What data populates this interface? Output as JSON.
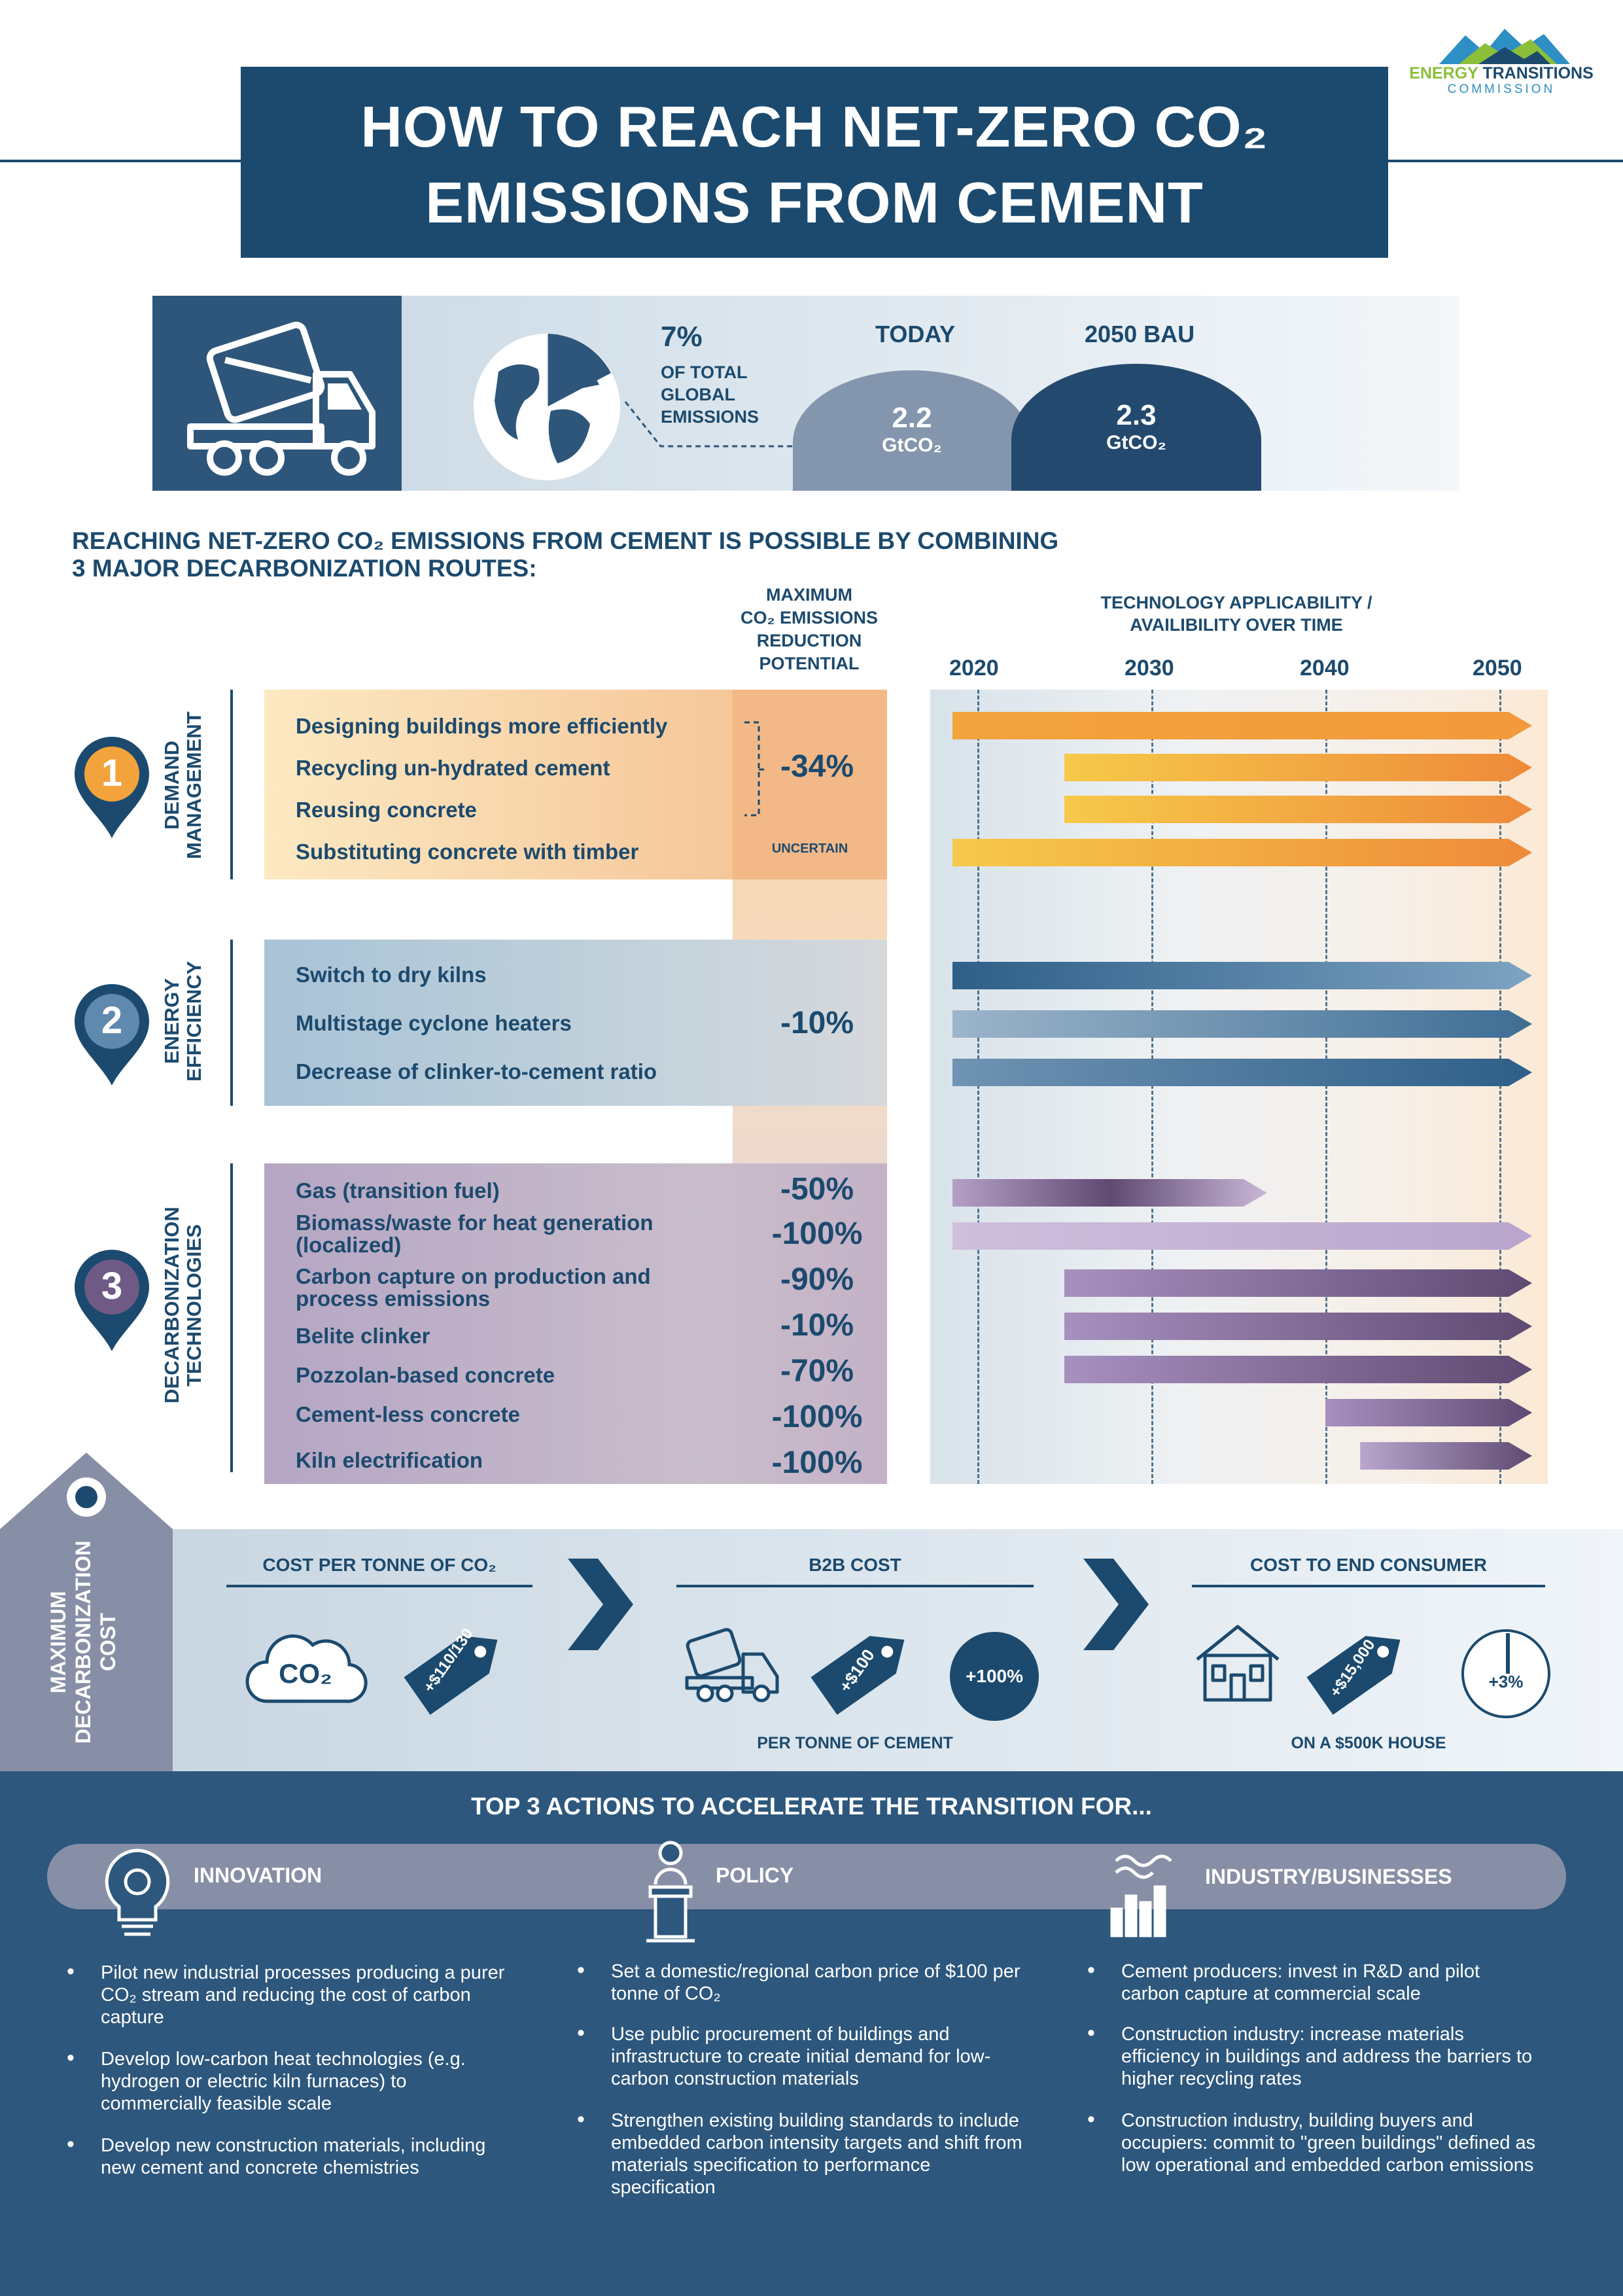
{
  "brand": {
    "line1a": "ENERGY ",
    "line1b": "TRANSITIONS",
    "line2": "COMMISSION"
  },
  "title": {
    "line1": "HOW TO REACH NET-ZERO CO₂",
    "line2": "EMISSIONS FROM CEMENT"
  },
  "stats": {
    "share_pct": "7%",
    "share_label": "OF TOTAL GLOBAL EMISSIONS",
    "today_label": "TODAY",
    "today_value": "2.2",
    "today_unit": "GtCO₂",
    "bau_label": "2050 BAU",
    "bau_value": "2.3",
    "bau_unit": "GtCO₂"
  },
  "intro": {
    "line1": "REACHING NET-ZERO CO₂ EMISSIONS FROM CEMENT IS POSSIBLE BY COMBINING",
    "line2": "3 MAJOR DECARBONIZATION ROUTES:"
  },
  "col_headers": {
    "max_reduction": [
      "MAXIMUM",
      "CO₂ EMISSIONS",
      "REDUCTION",
      "POTENTIAL"
    ],
    "timeline": [
      "TECHNOLOGY APPLICABILITY /",
      "AVAILIBILITY OVER TIME"
    ]
  },
  "timeline_years": [
    "2020",
    "2030",
    "2040",
    "2050"
  ],
  "routes": [
    {
      "number": "1",
      "label": "DEMAND MANAGEMENT",
      "color": "#f0a95c",
      "items": [
        {
          "label": "Designing buildings more efficiently",
          "start": 2018,
          "end": 2051
        },
        {
          "label": "Recycling un-hydrated cement",
          "start": 2025,
          "end": 2051
        },
        {
          "label": "Reusing concrete",
          "start": 2025,
          "end": 2051
        },
        {
          "label": "Substituting concrete with timber",
          "start": 2018,
          "end": 2051
        }
      ],
      "reduction": "-34%",
      "reduction_note": "UNCERTAIN"
    },
    {
      "number": "2",
      "label": "ENERGY EFFICIENCY",
      "color": "#2e5f88",
      "items": [
        {
          "label": "Switch to dry kilns",
          "start": 2018,
          "end": 2051
        },
        {
          "label": "Multistage cyclone heaters",
          "start": 2018,
          "end": 2051
        },
        {
          "label": "Decrease of clinker-to-cement ratio",
          "start": 2018,
          "end": 2051
        }
      ],
      "reduction": "-10%"
    },
    {
      "number": "3",
      "label": "DECARBONIZATION TECHNOLOGIES",
      "color": "#5f4a72",
      "items": [
        {
          "label": "Gas (transition fuel)",
          "reduction": "-50%",
          "start": 2018,
          "end": 2035
        },
        {
          "label": "Biomass/waste for heat generation (localized)",
          "reduction": "-100%",
          "start": 2018,
          "end": 2051
        },
        {
          "label": "Carbon capture on production and process emissions",
          "reduction": "-90%",
          "start": 2025,
          "end": 2051
        },
        {
          "label": "Belite clinker",
          "reduction": "-10%",
          "start": 2025,
          "end": 2051
        },
        {
          "label": "Pozzolan-based concrete",
          "reduction": "-70%",
          "start": 2025,
          "end": 2051
        },
        {
          "label": "Cement-less concrete",
          "reduction": "-100%",
          "start": 2040,
          "end": 2051
        },
        {
          "label": "Kiln electrification",
          "reduction": "-100%",
          "start": 2042,
          "end": 2051
        }
      ]
    }
  ],
  "cost": {
    "side_label": "MAXIMUM DECARBONIZATION COST",
    "per_tonne": {
      "heading": "COST PER TONNE OF CO₂",
      "cloud": "CO₂",
      "tag": "+$110/130"
    },
    "b2b": {
      "heading": "B2B COST",
      "tag": "+$100",
      "circle": "+100%",
      "note": "PER TONNE OF CEMENT"
    },
    "consumer": {
      "heading": "COST TO END CONSUMER",
      "tag": "+$15,000",
      "circle": "+3%",
      "note": "ON A $500K HOUSE"
    }
  },
  "actions": {
    "heading": "TOP 3 ACTIONS TO ACCELERATE THE TRANSITION FOR...",
    "columns": [
      {
        "title": "INNOVATION",
        "bullets": [
          "Pilot new industrial processes producing a purer CO₂ stream and reducing the cost of carbon capture",
          "Develop low-carbon heat technologies (e.g. hydrogen or electric kiln furnaces) to commercially feasible scale",
          "Develop new construction materials, including new cement and concrete chemistries"
        ]
      },
      {
        "title": "POLICY",
        "bullets": [
          "Set a domestic/regional carbon price of $100 per tonne of CO₂",
          "Use public procurement of buildings and infrastructure to create initial demand for low-carbon construction materials",
          "Strengthen existing building standards to include embedded carbon intensity targets and shift from materials specification to performance specification"
        ]
      },
      {
        "title": "INDUSTRY/BUSINESSES",
        "bullets": [
          "Cement producers: invest in R&D and pilot carbon capture at commercial scale",
          "Construction industry: increase materials efficiency in buildings and address the barriers to higher recycling rates",
          "Construction industry, building buyers and occupiers: commit to \"green buildings\" defined as low operational and embedded carbon emissions"
        ]
      }
    ]
  }
}
